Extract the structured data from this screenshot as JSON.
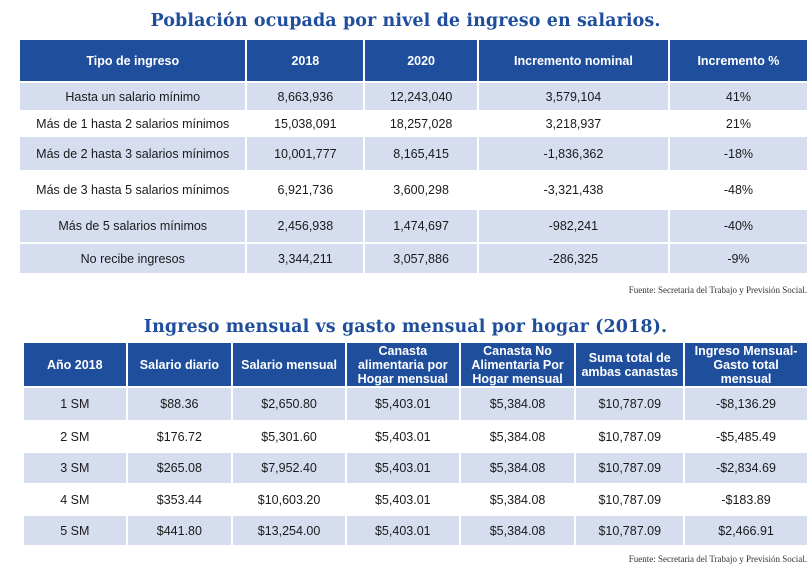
{
  "table1": {
    "title": "Población ocupada por nivel de ingreso en salarios.",
    "headers": [
      "Tipo de ingreso",
      "2018",
      "2020",
      "Incremento nominal",
      "Incremento %"
    ],
    "rows": [
      [
        "Hasta un salario mínimo",
        "8,663,936",
        "12,243,040",
        "3,579,104",
        "41%"
      ],
      [
        "Más de 1 hasta 2 salarios mínimos",
        "15,038,091",
        "18,257,028",
        "3,218,937",
        "21%"
      ],
      [
        "Más de 2 hasta 3 salarios mínimos",
        "10,001,777",
        "8,165,415",
        "-1,836,362",
        "-18%"
      ],
      [
        "Más de 3 hasta 5 salarios mínimos",
        "6,921,736",
        "3,600,298",
        "-3,321,438",
        "-48%"
      ],
      [
        "Más de 5 salarios mínimos",
        "2,456,938",
        "1,474,697",
        "-982,241",
        "-40%"
      ],
      [
        "No recibe ingresos",
        "3,344,211",
        "3,057,886",
        "-286,325",
        "-9%"
      ]
    ],
    "source": "Fuente: Secretaria del Trabajo y Previsión Social."
  },
  "table2": {
    "title": "Ingreso mensual vs gasto mensual por hogar (2018).",
    "headers": [
      "Año 2018",
      "Salario diario",
      "Salario mensual",
      "Canasta alimentaria por Hogar mensual",
      "Canasta No Alimentaria Por Hogar mensual",
      "Suma total de ambas canastas",
      "Ingreso Mensual-Gasto total mensual"
    ],
    "rows": [
      [
        "1 SM",
        "$88.36",
        "$2,650.80",
        "$5,403.01",
        "$5,384.08",
        "$10,787.09",
        "-$8,136.29"
      ],
      [
        "2 SM",
        "$176.72",
        "$5,301.60",
        "$5,403.01",
        "$5,384.08",
        "$10,787.09",
        "-$5,485.49"
      ],
      [
        "3 SM",
        "$265.08",
        "$7,952.40",
        "$5,403.01",
        "$5,384.08",
        "$10,787.09",
        "-$2,834.69"
      ],
      [
        "4 SM",
        "$353.44",
        "$10,603.20",
        "$5,403.01",
        "$5,384.08",
        "$10,787.09",
        "-$183.89"
      ],
      [
        "5 SM",
        "$441.80",
        "$13,254.00",
        "$5,403.01",
        "$5,384.08",
        "$10,787.09",
        "$2,466.91"
      ]
    ],
    "source": "Fuente: Secretaria del Trabajo y Previsión Social."
  },
  "colors": {
    "header_bg": "#1f4e9c",
    "band_bg": "#d5ddef",
    "title_color": "#1f4e9c"
  }
}
